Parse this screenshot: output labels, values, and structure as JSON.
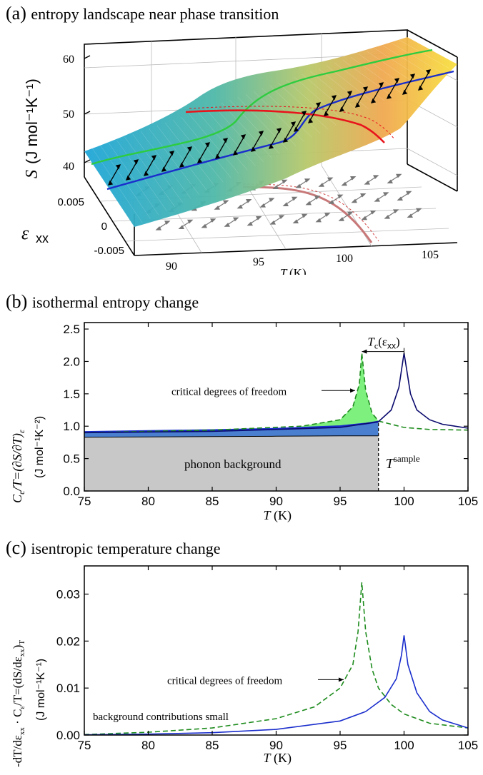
{
  "colors": {
    "green_curve": "#2ecc40",
    "blue_curve": "#1a2ecc",
    "red_curve": "#e8141c",
    "navy": "#0a0a6e",
    "dashed_green": "#1e8c1e",
    "gray_fill": "#c8c8c8",
    "blue_fill": "#4a7fd0",
    "green_fill": "#7ef07e"
  },
  "panel_a": {
    "letter": "(a)",
    "title": "entropy landscape near phase transition",
    "ylabel_main": "S",
    "ylabel_unit": "(J mol⁻¹K⁻¹)",
    "strain_label": "ε",
    "strain_sub": "xx",
    "xlabel_var": "T",
    "xlabel_unit": "(K)",
    "s_ticks": [
      "60",
      "50",
      "40"
    ],
    "e_ticks": [
      "0.005",
      "0",
      "-0.005"
    ],
    "t_ticks": [
      "90",
      "95",
      "100",
      "105"
    ]
  },
  "panel_b": {
    "letter": "(b)",
    "title": "isothermal entropy change",
    "ylabel": "C",
    "ylabel_rest": "/T=(∂S/∂T)",
    "ylabel_sub1": "ε",
    "ylabel_sub2": "ε",
    "ylabel_unit": "(J mol⁻¹K⁻²)",
    "xlabel_var": "T",
    "xlabel_unit": "(K)",
    "annot_tc": "T",
    "annot_tc_sub": "c",
    "annot_tc_arg": "(ε",
    "annot_tc_argsub": "xx",
    "annot_tc_close": ")",
    "annot_critical": "critical degrees of freedom",
    "annot_phonon": "phonon background",
    "annot_tsample": "T",
    "annot_tsample_sup": "sample"
  },
  "panel_c": {
    "letter": "(c)",
    "title": "isentropic temperature change",
    "ylabel": "-dT/dε",
    "ylabel_sub": "xx",
    "ylabel_rest": "· C",
    "ylabel_rest_sub": "ε",
    "ylabel_rest2": "/T=(dS/dε",
    "ylabel_rest2_sub": "xx",
    "ylabel_rest3": ")",
    "ylabel_rest3_sub": "T",
    "ylabel_unit": "(J mol⁻¹K⁻¹)",
    "xlabel_var": "T",
    "xlabel_unit": "(K)",
    "annot_critical": "critical degrees of freedom",
    "annot_background": "background contributions small"
  },
  "chart_data": [
    {
      "type": "surface",
      "title": "entropy landscape near phase transition",
      "xlabel": "T (K)",
      "ylabel": "ε_xx",
      "zlabel": "S (J mol⁻¹K⁻¹)",
      "xlim": [
        88,
        106
      ],
      "ylim": [
        -0.007,
        0.007
      ],
      "zlim": [
        38,
        63
      ],
      "x_ticks": [
        90,
        95,
        100,
        105
      ],
      "y_ticks": [
        0.005,
        0,
        -0.005
      ],
      "z_ticks": [
        40,
        50,
        60
      ]
    },
    {
      "type": "area",
      "title": "isothermal entropy change",
      "xlabel": "T (K)",
      "ylabel": "C_ε/T=(∂S/∂T)_ε (J mol⁻¹K⁻²)",
      "xlim": [
        75,
        105
      ],
      "ylim": [
        0,
        2.6
      ],
      "x_ticks": [
        75,
        80,
        85,
        90,
        95,
        100,
        105
      ],
      "y_ticks": [
        0.0,
        0.5,
        1.0,
        1.5,
        2.0,
        2.5
      ],
      "t_sample": 98,
      "tc_low": 96.7,
      "tc_high": 100,
      "peak": 2.13,
      "series": [
        {
          "name": "phonon background",
          "x": [
            75,
            80,
            85,
            90,
            95,
            98
          ],
          "values": [
            0.83,
            0.835,
            0.84,
            0.845,
            0.85,
            0.85
          ]
        },
        {
          "x": [
            75,
            80,
            85,
            90,
            95,
            97,
            98
          ],
          "values": [
            0.91,
            0.925,
            0.94,
            0.96,
            1.0,
            1.04,
            1.07
          ]
        },
        {
          "x": [
            75,
            85,
            92,
            95,
            96,
            96.5,
            96.7,
            97,
            97.5,
            98,
            100,
            102,
            105
          ],
          "values": [
            0.9,
            0.94,
            1.0,
            1.1,
            1.3,
            1.65,
            2.13,
            1.55,
            1.2,
            1.08,
            0.98,
            0.95,
            0.94
          ]
        },
        {
          "x": [
            75,
            85,
            95,
            98,
            99,
            99.6,
            100,
            100.5,
            101,
            102,
            103,
            105
          ],
          "values": [
            0.9,
            0.92,
            0.98,
            1.07,
            1.25,
            1.6,
            2.13,
            1.5,
            1.25,
            1.1,
            1.03,
            0.97
          ]
        }
      ]
    },
    {
      "type": "line",
      "title": "isentropic temperature change",
      "xlabel": "T (K)",
      "ylabel": "-dT/dε_xx · C_ε/T=(dS/dε_xx)_T (J mol⁻¹K⁻¹)",
      "xlim": [
        75,
        105
      ],
      "ylim": [
        0,
        0.036
      ],
      "x_ticks": [
        75,
        80,
        85,
        90,
        95,
        100,
        105
      ],
      "y_ticks": [
        0.0,
        0.01,
        0.02,
        0.03
      ],
      "series": [
        {
          "x": [
            75,
            80,
            85,
            90,
            93,
            95,
            96,
            96.4,
            96.7,
            97,
            97.5,
            98,
            99,
            100,
            102,
            105
          ],
          "values": [
            0.0001,
            0.0006,
            0.0015,
            0.0035,
            0.006,
            0.01,
            0.015,
            0.022,
            0.0325,
            0.022,
            0.014,
            0.01,
            0.0065,
            0.0045,
            0.0025,
            0.0015
          ]
        },
        {
          "x": [
            75,
            80,
            85,
            90,
            95,
            97,
            98.5,
            99.4,
            99.8,
            100,
            100.3,
            101,
            102,
            103,
            105
          ],
          "values": [
            5e-05,
            0.0002,
            0.0005,
            0.0012,
            0.003,
            0.005,
            0.008,
            0.012,
            0.017,
            0.0212,
            0.015,
            0.009,
            0.005,
            0.0032,
            0.0015
          ]
        }
      ]
    }
  ]
}
